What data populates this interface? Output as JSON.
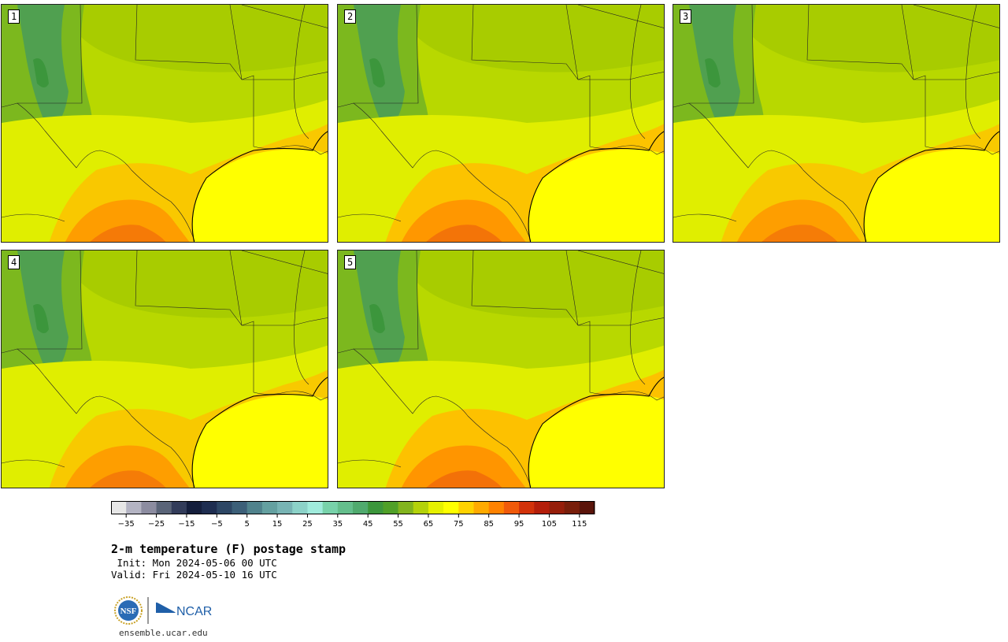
{
  "figure": {
    "title": "2-m temperature (F) postage stamp",
    "init_label": " Init: Mon 2024-05-06 00 UTC",
    "valid_label": "Valid: Fri 2024-05-10 16 UTC",
    "url": "ensemble.ucar.edu"
  },
  "members": [
    {
      "id": "1",
      "hot_level": 0.55
    },
    {
      "id": "2",
      "hot_level": 0.75
    },
    {
      "id": "3",
      "hot_level": 0.5
    },
    {
      "id": "4",
      "hot_level": 0.5
    },
    {
      "id": "5",
      "hot_level": 0.85
    }
  ],
  "colorbar": {
    "ticks": [
      "−35",
      "−25",
      "−15",
      "−5",
      "5",
      "15",
      "25",
      "35",
      "45",
      "55",
      "65",
      "75",
      "85",
      "95",
      "105",
      "115"
    ],
    "min": -40,
    "max": 120,
    "step": 5,
    "colors": [
      "#e6e6e6",
      "#b4b4c3",
      "#8c8ca0",
      "#5a6478",
      "#323c5a",
      "#141e3c",
      "#1e2d50",
      "#2d4664",
      "#3c5f78",
      "#50828c",
      "#64a0a0",
      "#78b4b4",
      "#8cd2c8",
      "#a0ebdc",
      "#78d2aa",
      "#64be8c",
      "#50aa6e",
      "#3c963c",
      "#50a028",
      "#82b41e",
      "#b4d20a",
      "#e6f000",
      "#ffff00",
      "#ffd200",
      "#ffaa00",
      "#ff8200",
      "#f05a0a",
      "#d2320a",
      "#b41e0a",
      "#961e0a",
      "#781e0a",
      "#5a140a"
    ]
  },
  "logos": {
    "nsf_text": "NSF",
    "ncar_text": "NCAR",
    "colors": {
      "nsf_blue": "#2a6bb5",
      "nsf_gold": "#c9a227",
      "ncar_blue": "#1f5fa8"
    }
  }
}
